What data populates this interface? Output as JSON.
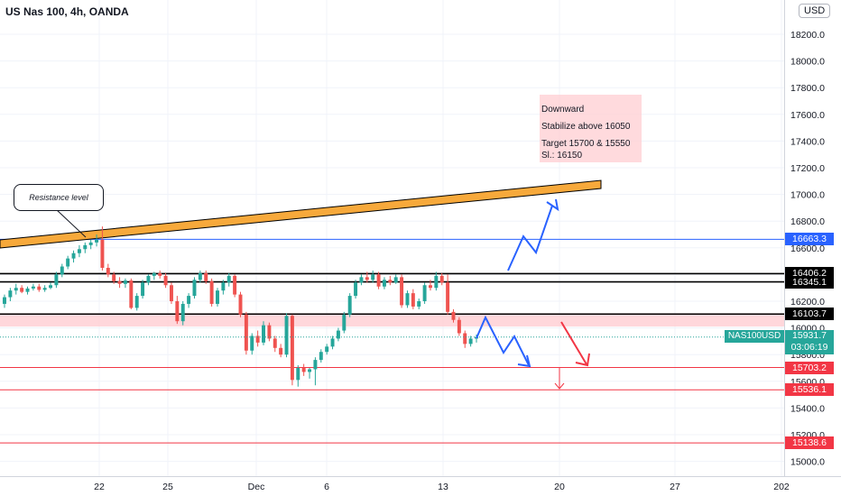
{
  "header": {
    "title": "US Nas 100, 4h, OANDA",
    "currency": "USD"
  },
  "annotations": {
    "note_lines": [
      "Downward",
      "Stabilize  above 16050",
      "Target 15700 & 15550",
      "Sl.: 16150"
    ],
    "callout": "Resistance level"
  },
  "price_labels": [
    {
      "text": "16663.3",
      "value": 16663.3,
      "bg": "#2962ff",
      "fg": "#ffffff"
    },
    {
      "text": "16406.2",
      "value": 16406.2,
      "bg": "#000000",
      "fg": "#ffffff"
    },
    {
      "text": "16345.1",
      "value": 16345.1,
      "bg": "#000000",
      "fg": "#ffffff"
    },
    {
      "text": "16103.7",
      "value": 16103.7,
      "bg": "#000000",
      "fg": "#ffffff"
    },
    {
      "text": "15703.2",
      "value": 15703.2,
      "bg": "#f23645",
      "fg": "#ffffff"
    },
    {
      "text": "15536.1",
      "value": 15536.1,
      "bg": "#f23645",
      "fg": "#ffffff"
    },
    {
      "text": "15138.6",
      "value": 15138.6,
      "bg": "#f23645",
      "fg": "#ffffff"
    }
  ],
  "current": {
    "symbol": "NAS100USD",
    "price": "15931.7",
    "countdown": "03:06:19",
    "value": 15931.7
  },
  "colors": {
    "up": "#26a69a",
    "down": "#ef5350",
    "resistance": "#f7a93b",
    "zone": "#ffcdd2",
    "blue": "#2962ff",
    "red": "#f23645"
  },
  "chart_data": {
    "type": "candlestick",
    "title": "US Nas 100, 4h, OANDA",
    "ylim": [
      14900,
      18350
    ],
    "y_ticks": [
      "18200.0",
      "18000.0",
      "17800.0",
      "17600.0",
      "17400.0",
      "17200.0",
      "17000.0",
      "16800.0",
      "16600.0",
      "16400.0",
      "16200.0",
      "16000.0",
      "15800.0",
      "15600.0",
      "15400.0",
      "15200.0",
      "15000.0"
    ],
    "x_ticks": [
      "22",
      "25",
      "Dec",
      "6",
      "13",
      "20",
      "27",
      "202"
    ],
    "horizontal_levels": [
      16663.3,
      16406.2,
      16345.1,
      16103.7,
      15703.2,
      15536.1,
      15138.6
    ],
    "zone": [
      16010,
      16110
    ],
    "candles": [
      {
        "o": 16180,
        "h": 16250,
        "l": 16150,
        "c": 16230
      },
      {
        "o": 16230,
        "h": 16300,
        "l": 16200,
        "c": 16280
      },
      {
        "o": 16280,
        "h": 16330,
        "l": 16250,
        "c": 16300
      },
      {
        "o": 16300,
        "h": 16320,
        "l": 16260,
        "c": 16270
      },
      {
        "o": 16270,
        "h": 16310,
        "l": 16250,
        "c": 16295
      },
      {
        "o": 16295,
        "h": 16330,
        "l": 16280,
        "c": 16310
      },
      {
        "o": 16310,
        "h": 16330,
        "l": 16270,
        "c": 16285
      },
      {
        "o": 16285,
        "h": 16320,
        "l": 16270,
        "c": 16300
      },
      {
        "o": 16300,
        "h": 16340,
        "l": 16290,
        "c": 16320
      },
      {
        "o": 16320,
        "h": 16420,
        "l": 16300,
        "c": 16400
      },
      {
        "o": 16400,
        "h": 16480,
        "l": 16380,
        "c": 16460
      },
      {
        "o": 16460,
        "h": 16540,
        "l": 16440,
        "c": 16520
      },
      {
        "o": 16520,
        "h": 16580,
        "l": 16490,
        "c": 16560
      },
      {
        "o": 16560,
        "h": 16620,
        "l": 16530,
        "c": 16590
      },
      {
        "o": 16590,
        "h": 16640,
        "l": 16560,
        "c": 16620
      },
      {
        "o": 16620,
        "h": 16660,
        "l": 16590,
        "c": 16640
      },
      {
        "o": 16640,
        "h": 16700,
        "l": 16610,
        "c": 16660
      },
      {
        "o": 16660,
        "h": 16760,
        "l": 16430,
        "c": 16450
      },
      {
        "o": 16450,
        "h": 16480,
        "l": 16380,
        "c": 16400
      },
      {
        "o": 16400,
        "h": 16420,
        "l": 16330,
        "c": 16350
      },
      {
        "o": 16350,
        "h": 16380,
        "l": 16300,
        "c": 16330
      },
      {
        "o": 16330,
        "h": 16370,
        "l": 16300,
        "c": 16355
      },
      {
        "o": 16355,
        "h": 16370,
        "l": 16140,
        "c": 16150
      },
      {
        "o": 16150,
        "h": 16260,
        "l": 16130,
        "c": 16240
      },
      {
        "o": 16240,
        "h": 16360,
        "l": 16220,
        "c": 16340
      },
      {
        "o": 16340,
        "h": 16400,
        "l": 16320,
        "c": 16390
      },
      {
        "o": 16390,
        "h": 16420,
        "l": 16360,
        "c": 16410
      },
      {
        "o": 16410,
        "h": 16430,
        "l": 16370,
        "c": 16390
      },
      {
        "o": 16390,
        "h": 16410,
        "l": 16300,
        "c": 16320
      },
      {
        "o": 16320,
        "h": 16340,
        "l": 16180,
        "c": 16200
      },
      {
        "o": 16200,
        "h": 16240,
        "l": 16030,
        "c": 16050
      },
      {
        "o": 16050,
        "h": 16200,
        "l": 16020,
        "c": 16180
      },
      {
        "o": 16180,
        "h": 16260,
        "l": 16150,
        "c": 16240
      },
      {
        "o": 16240,
        "h": 16380,
        "l": 16220,
        "c": 16360
      },
      {
        "o": 16360,
        "h": 16430,
        "l": 16340,
        "c": 16410
      },
      {
        "o": 16410,
        "h": 16430,
        "l": 16330,
        "c": 16350
      },
      {
        "o": 16350,
        "h": 16370,
        "l": 16160,
        "c": 16180
      },
      {
        "o": 16180,
        "h": 16300,
        "l": 16160,
        "c": 16280
      },
      {
        "o": 16280,
        "h": 16360,
        "l": 16250,
        "c": 16340
      },
      {
        "o": 16340,
        "h": 16410,
        "l": 16310,
        "c": 16390
      },
      {
        "o": 16390,
        "h": 16400,
        "l": 16230,
        "c": 16250
      },
      {
        "o": 16250,
        "h": 16270,
        "l": 16080,
        "c": 16100
      },
      {
        "o": 16100,
        "h": 16120,
        "l": 15800,
        "c": 15830
      },
      {
        "o": 15830,
        "h": 15960,
        "l": 15800,
        "c": 15940
      },
      {
        "o": 15940,
        "h": 15980,
        "l": 15860,
        "c": 15890
      },
      {
        "o": 15890,
        "h": 16050,
        "l": 15870,
        "c": 16020
      },
      {
        "o": 16020,
        "h": 16040,
        "l": 15900,
        "c": 15920
      },
      {
        "o": 15920,
        "h": 15940,
        "l": 15820,
        "c": 15850
      },
      {
        "o": 15850,
        "h": 15880,
        "l": 15780,
        "c": 15800
      },
      {
        "o": 15800,
        "h": 16110,
        "l": 15780,
        "c": 16090
      },
      {
        "o": 16090,
        "h": 16100,
        "l": 15570,
        "c": 15610
      },
      {
        "o": 15610,
        "h": 15720,
        "l": 15560,
        "c": 15700
      },
      {
        "o": 15700,
        "h": 15730,
        "l": 15640,
        "c": 15670
      },
      {
        "o": 15670,
        "h": 15700,
        "l": 15620,
        "c": 15690
      },
      {
        "o": 15690,
        "h": 15780,
        "l": 15570,
        "c": 15760
      },
      {
        "o": 15760,
        "h": 15840,
        "l": 15740,
        "c": 15820
      },
      {
        "o": 15820,
        "h": 15880,
        "l": 15800,
        "c": 15860
      },
      {
        "o": 15860,
        "h": 15940,
        "l": 15840,
        "c": 15920
      },
      {
        "o": 15920,
        "h": 16000,
        "l": 15900,
        "c": 15980
      },
      {
        "o": 15980,
        "h": 16120,
        "l": 15960,
        "c": 16100
      },
      {
        "o": 16100,
        "h": 16260,
        "l": 16080,
        "c": 16240
      },
      {
        "o": 16240,
        "h": 16360,
        "l": 16220,
        "c": 16340
      },
      {
        "o": 16340,
        "h": 16400,
        "l": 16320,
        "c": 16380
      },
      {
        "o": 16380,
        "h": 16420,
        "l": 16340,
        "c": 16360
      },
      {
        "o": 16360,
        "h": 16430,
        "l": 16340,
        "c": 16400
      },
      {
        "o": 16400,
        "h": 16420,
        "l": 16290,
        "c": 16310
      },
      {
        "o": 16310,
        "h": 16380,
        "l": 16290,
        "c": 16360
      },
      {
        "o": 16360,
        "h": 16390,
        "l": 16320,
        "c": 16340
      },
      {
        "o": 16340,
        "h": 16400,
        "l": 16330,
        "c": 16380
      },
      {
        "o": 16380,
        "h": 16400,
        "l": 16150,
        "c": 16170
      },
      {
        "o": 16170,
        "h": 16280,
        "l": 16150,
        "c": 16260
      },
      {
        "o": 16260,
        "h": 16290,
        "l": 16140,
        "c": 16160
      },
      {
        "o": 16160,
        "h": 16220,
        "l": 16140,
        "c": 16200
      },
      {
        "o": 16200,
        "h": 16340,
        "l": 16180,
        "c": 16320
      },
      {
        "o": 16320,
        "h": 16360,
        "l": 16280,
        "c": 16300
      },
      {
        "o": 16300,
        "h": 16420,
        "l": 16280,
        "c": 16390
      },
      {
        "o": 16390,
        "h": 16410,
        "l": 16320,
        "c": 16340
      },
      {
        "o": 16340,
        "h": 16400,
        "l": 16100,
        "c": 16120
      },
      {
        "o": 16120,
        "h": 16140,
        "l": 16040,
        "c": 16060
      },
      {
        "o": 16060,
        "h": 16080,
        "l": 15940,
        "c": 15960
      },
      {
        "o": 15960,
        "h": 15980,
        "l": 15850,
        "c": 15880
      },
      {
        "o": 15880,
        "h": 15940,
        "l": 15860,
        "c": 15920
      },
      {
        "o": 15920,
        "h": 15950,
        "l": 15890,
        "c": 15932
      }
    ]
  }
}
